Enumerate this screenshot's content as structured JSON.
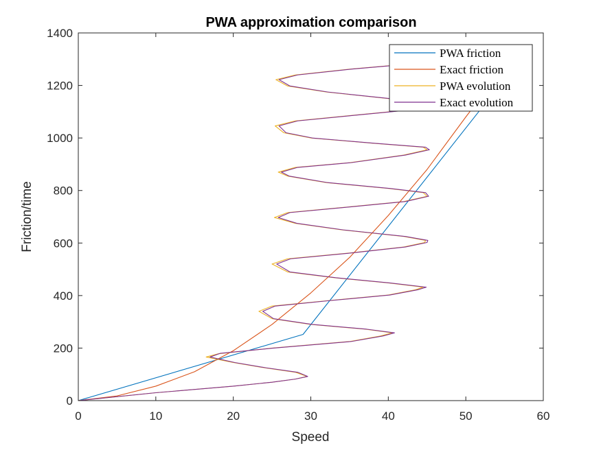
{
  "chart_data": {
    "type": "line",
    "title": "PWA approximation comparison",
    "xlabel": "Speed",
    "ylabel": "Friction/time",
    "xlim": [
      0,
      60
    ],
    "ylim": [
      0,
      1400
    ],
    "xticks": [
      0,
      10,
      20,
      30,
      40,
      50,
      60
    ],
    "yticks": [
      0,
      200,
      400,
      600,
      800,
      1000,
      1200,
      1400
    ],
    "xtick_labels": [
      "0",
      "10",
      "20",
      "30",
      "40",
      "50",
      "60"
    ],
    "ytick_labels": [
      "0",
      "200",
      "400",
      "600",
      "800",
      "1000",
      "1200",
      "1400"
    ],
    "grid": false,
    "legend_position": "top-right",
    "series": [
      {
        "name": "PWA friction",
        "color": "#0072BD",
        "points": [
          [
            0,
            0
          ],
          [
            29,
            252
          ],
          [
            53,
            1150
          ]
        ]
      },
      {
        "name": "Exact friction",
        "color": "#D95319",
        "points": [
          [
            0,
            0
          ],
          [
            5,
            18
          ],
          [
            10,
            55
          ],
          [
            15,
            110
          ],
          [
            20,
            190
          ],
          [
            25,
            290
          ],
          [
            30,
            410
          ],
          [
            35,
            545
          ],
          [
            40,
            705
          ],
          [
            45,
            880
          ],
          [
            50,
            1080
          ],
          [
            53.5,
            1215
          ]
        ]
      },
      {
        "name": "PWA evolution",
        "color": "#EDB120",
        "points": [
          [
            0,
            0
          ],
          [
            10,
            30
          ],
          [
            20,
            55
          ],
          [
            25,
            70
          ],
          [
            28,
            82
          ],
          [
            29.5,
            92
          ],
          [
            28,
            108
          ],
          [
            24,
            125
          ],
          [
            20,
            145
          ],
          [
            16.5,
            166
          ],
          [
            18,
            178
          ],
          [
            25,
            200
          ],
          [
            35,
            225
          ],
          [
            39,
            246
          ],
          [
            40.5,
            258
          ],
          [
            37,
            272
          ],
          [
            30,
            290
          ],
          [
            25,
            312
          ],
          [
            23.3,
            340
          ],
          [
            25,
            360
          ],
          [
            32,
            380
          ],
          [
            40,
            402
          ],
          [
            43.5,
            422
          ],
          [
            44.5,
            432
          ],
          [
            40,
            448
          ],
          [
            33,
            468
          ],
          [
            27,
            490
          ],
          [
            25,
            520
          ],
          [
            27,
            540
          ],
          [
            35,
            562
          ],
          [
            42,
            585
          ],
          [
            44.7,
            602
          ],
          [
            44.8,
            610
          ],
          [
            42,
            625
          ],
          [
            34,
            650
          ],
          [
            28,
            675
          ],
          [
            25.3,
            697
          ],
          [
            27,
            716
          ],
          [
            34,
            735
          ],
          [
            42,
            758
          ],
          [
            45,
            778
          ],
          [
            44.5,
            792
          ],
          [
            40,
            808
          ],
          [
            32,
            830
          ],
          [
            27,
            855
          ],
          [
            25.8,
            870
          ],
          [
            28,
            888
          ],
          [
            35,
            906
          ],
          [
            42,
            935
          ],
          [
            45,
            955
          ],
          [
            44.5,
            965
          ],
          [
            38,
            980
          ],
          [
            30,
            1000
          ],
          [
            26.5,
            1020
          ],
          [
            25.4,
            1046
          ],
          [
            28,
            1065
          ],
          [
            35,
            1085
          ],
          [
            42,
            1105
          ],
          [
            45.5,
            1122
          ],
          [
            40,
            1150
          ],
          [
            32,
            1175
          ],
          [
            27,
            1198
          ],
          [
            25.5,
            1222
          ],
          [
            28,
            1240
          ],
          [
            35,
            1262
          ],
          [
            42,
            1280
          ]
        ]
      },
      {
        "name": "Exact evolution",
        "color": "#7E2F8E",
        "points": [
          [
            0,
            0
          ],
          [
            10,
            30
          ],
          [
            20,
            55
          ],
          [
            25,
            70
          ],
          [
            28,
            82
          ],
          [
            29.6,
            92
          ],
          [
            28.3,
            108
          ],
          [
            24.2,
            125
          ],
          [
            20.2,
            145
          ],
          [
            17,
            166
          ],
          [
            18.3,
            180
          ],
          [
            25.2,
            200
          ],
          [
            35.2,
            225
          ],
          [
            39.3,
            246
          ],
          [
            40.8,
            258
          ],
          [
            37.2,
            272
          ],
          [
            30.2,
            290
          ],
          [
            25.2,
            312
          ],
          [
            23.8,
            340
          ],
          [
            25.4,
            360
          ],
          [
            32.2,
            380
          ],
          [
            40.2,
            402
          ],
          [
            43.8,
            422
          ],
          [
            44.9,
            432
          ],
          [
            40.2,
            448
          ],
          [
            33.2,
            468
          ],
          [
            27.3,
            490
          ],
          [
            25.6,
            520
          ],
          [
            27.4,
            540
          ],
          [
            35.2,
            562
          ],
          [
            42.2,
            585
          ],
          [
            45,
            602
          ],
          [
            45.1,
            610
          ],
          [
            42.2,
            625
          ],
          [
            34.2,
            650
          ],
          [
            28.2,
            675
          ],
          [
            25.8,
            697
          ],
          [
            27.3,
            716
          ],
          [
            34.2,
            735
          ],
          [
            42.2,
            758
          ],
          [
            45.2,
            778
          ],
          [
            44.8,
            792
          ],
          [
            40.2,
            808
          ],
          [
            32.2,
            830
          ],
          [
            27.2,
            855
          ],
          [
            26.2,
            870
          ],
          [
            28.3,
            888
          ],
          [
            35.2,
            906
          ],
          [
            42.2,
            935
          ],
          [
            45.3,
            955
          ],
          [
            44.8,
            965
          ],
          [
            38.2,
            980
          ],
          [
            30.2,
            1000
          ],
          [
            26.8,
            1020
          ],
          [
            25.9,
            1046
          ],
          [
            28.3,
            1065
          ],
          [
            35.2,
            1085
          ],
          [
            42.2,
            1105
          ],
          [
            45.8,
            1122
          ],
          [
            40.2,
            1150
          ],
          [
            32.2,
            1175
          ],
          [
            27.3,
            1198
          ],
          [
            25.9,
            1222
          ],
          [
            28.3,
            1240
          ],
          [
            35.2,
            1262
          ],
          [
            42.2,
            1280
          ]
        ]
      }
    ]
  }
}
